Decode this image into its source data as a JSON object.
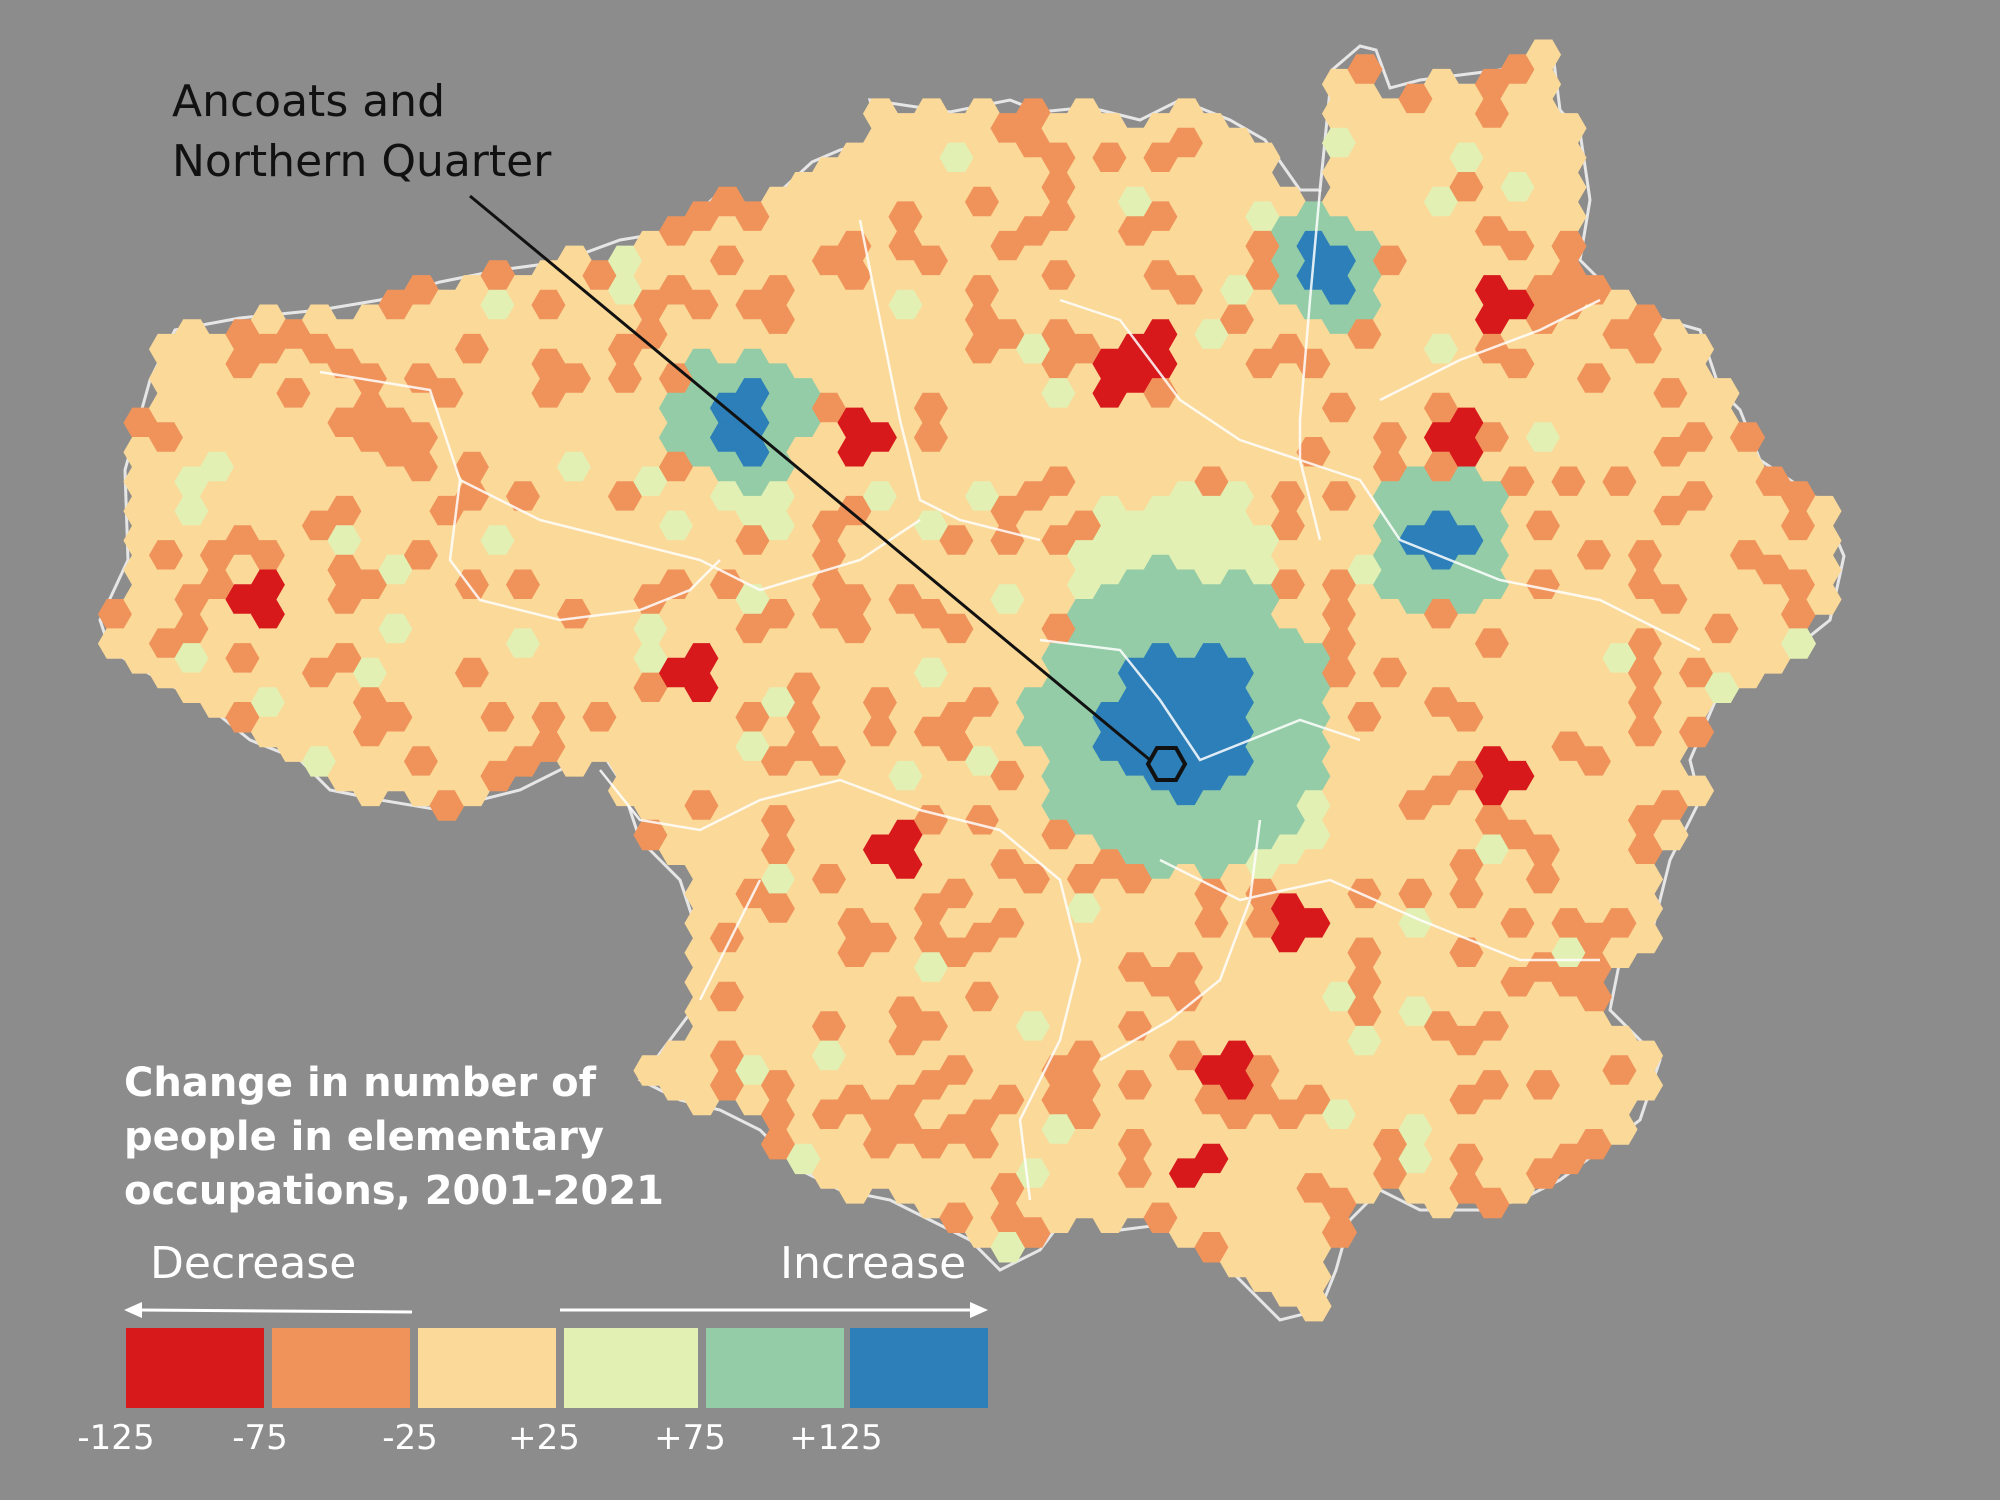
{
  "annotation": {
    "line1": "Ancoats and",
    "line2": "Northern Quarter"
  },
  "legend": {
    "title_lines": [
      "Change in number of",
      "people in elementary",
      "occupations, 2001-2021"
    ],
    "decrease_label": "Decrease",
    "increase_label": "Increase",
    "classes": [
      {
        "color": "#d7191c",
        "name": "strong-decrease"
      },
      {
        "color": "#f0935a",
        "name": "decrease"
      },
      {
        "color": "#fbd999",
        "name": "stable-low"
      },
      {
        "color": "#e3f0b4",
        "name": "stable-high"
      },
      {
        "color": "#94cca7",
        "name": "increase"
      },
      {
        "color": "#2c7fb8",
        "name": "strong-increase"
      }
    ],
    "ticks": [
      "-125",
      "-75",
      "-25",
      "+25",
      "+75",
      "+125"
    ]
  },
  "colors": {
    "background": "#8c8c8c",
    "boundary": "#ffffff",
    "outline": "#e6e6e6"
  }
}
